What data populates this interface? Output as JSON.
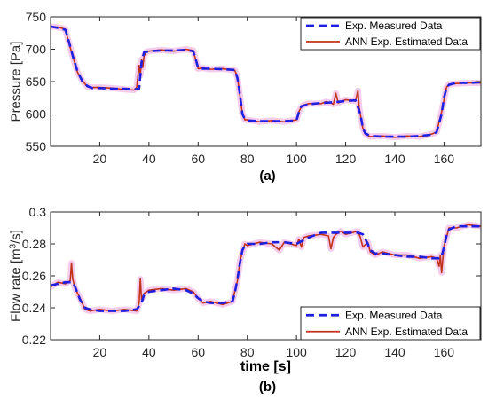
{
  "chart_data": [
    {
      "type": "line",
      "caption": "(a)",
      "xlabel": "",
      "ylabel": "Pressure [Pa]",
      "xlim": [
        0,
        175
      ],
      "ylim": [
        550,
        750
      ],
      "xticks": [
        20,
        40,
        60,
        80,
        100,
        120,
        140,
        160
      ],
      "yticks": [
        550,
        600,
        650,
        700,
        750
      ],
      "legend_position": "top-right",
      "series": [
        {
          "name": "Exp. Measured Data",
          "color": "#1f1fe0",
          "style": "dashed",
          "x": [
            0,
            3,
            6,
            7,
            9,
            11,
            13,
            15,
            17,
            20,
            25,
            30,
            34,
            36,
            37,
            38,
            40,
            45,
            50,
            55,
            58,
            59,
            60,
            62,
            65,
            70,
            75,
            76,
            77,
            78,
            79,
            80,
            85,
            90,
            95,
            100,
            101,
            102,
            103,
            105,
            110,
            115,
            120,
            124,
            126,
            127,
            128,
            130,
            135,
            140,
            145,
            150,
            155,
            157,
            159,
            160,
            161,
            162,
            165,
            170,
            175
          ],
          "y": [
            735,
            733,
            730,
            718,
            690,
            665,
            650,
            643,
            640,
            640,
            639,
            639,
            638,
            639,
            680,
            695,
            697,
            698,
            698,
            699,
            697,
            685,
            671,
            670,
            670,
            669,
            668,
            655,
            630,
            600,
            592,
            590,
            589,
            589,
            589,
            590,
            603,
            612,
            613,
            615,
            617,
            618,
            620,
            621,
            600,
            578,
            570,
            566,
            565,
            565,
            565,
            566,
            568,
            572,
            600,
            625,
            640,
            645,
            648,
            648,
            649
          ]
        },
        {
          "name": "ANN Exp. Estimated Data",
          "color": "#c0321a",
          "style": "solid",
          "x": [
            0,
            3,
            6,
            7,
            9,
            11,
            13,
            15,
            17,
            20,
            25,
            30,
            34,
            35,
            36,
            36.5,
            37,
            37.5,
            38,
            39,
            40,
            45,
            50,
            55,
            58,
            59,
            60,
            62,
            65,
            70,
            75,
            76,
            77,
            78,
            79,
            80,
            85,
            90,
            95,
            100,
            101,
            102,
            103,
            105,
            110,
            112,
            114,
            115,
            116,
            117,
            118,
            120,
            124,
            125,
            125.5,
            126,
            127,
            128,
            130,
            135,
            140,
            145,
            150,
            155,
            157,
            158,
            159,
            160,
            161,
            162,
            165,
            170,
            175
          ],
          "y": [
            735,
            734,
            731,
            716,
            689,
            664,
            651,
            642,
            641,
            641,
            640,
            638,
            637,
            641,
            675,
            660,
            684,
            672,
            690,
            696,
            697,
            699,
            697,
            700,
            698,
            684,
            670,
            671,
            669,
            670,
            667,
            656,
            628,
            601,
            591,
            591,
            588,
            590,
            588,
            591,
            604,
            611,
            614,
            616,
            616,
            619,
            617,
            615,
            632,
            617,
            619,
            622,
            620,
            636,
            610,
            599,
            578,
            569,
            565,
            566,
            564,
            566,
            565,
            569,
            572,
            588,
            603,
            622,
            641,
            646,
            647,
            648,
            648
          ]
        }
      ]
    },
    {
      "type": "line",
      "caption": "(b)",
      "xlabel": "time [s]",
      "ylabel": "Flow rate [m³/s]",
      "ylabel_parts": {
        "pre": "Flow rate [m",
        "sup": "3",
        "post": "/s]"
      },
      "xlim": [
        0,
        175
      ],
      "ylim": [
        0.22,
        0.3
      ],
      "xticks": [
        20,
        40,
        60,
        80,
        100,
        120,
        140,
        160
      ],
      "yticks": [
        0.22,
        0.24,
        0.26,
        0.28,
        0.3
      ],
      "ytick_labels": [
        "0.22",
        "0.24",
        "0.26",
        "0.28",
        "0.3"
      ],
      "legend_position": "bottom-right",
      "series": [
        {
          "name": "Exp. Measured Data",
          "color": "#1f1fe0",
          "style": "dashed",
          "x": [
            0,
            3,
            6,
            9,
            10,
            12,
            14,
            16,
            20,
            25,
            30,
            35,
            37,
            38,
            40,
            45,
            50,
            55,
            58,
            60,
            62,
            65,
            70,
            74,
            75,
            76,
            77,
            78,
            79,
            80,
            85,
            90,
            95,
            100,
            105,
            110,
            115,
            120,
            125,
            127,
            129,
            130,
            132,
            135,
            140,
            145,
            150,
            155,
            158,
            159,
            160,
            161,
            162,
            165,
            170,
            175
          ],
          "y": [
            0.254,
            0.255,
            0.256,
            0.256,
            0.253,
            0.245,
            0.24,
            0.239,
            0.238,
            0.238,
            0.238,
            0.239,
            0.243,
            0.248,
            0.25,
            0.251,
            0.252,
            0.251,
            0.249,
            0.246,
            0.244,
            0.243,
            0.243,
            0.244,
            0.25,
            0.258,
            0.268,
            0.276,
            0.279,
            0.28,
            0.28,
            0.281,
            0.281,
            0.28,
            0.284,
            0.287,
            0.287,
            0.287,
            0.287,
            0.286,
            0.28,
            0.276,
            0.274,
            0.274,
            0.273,
            0.272,
            0.272,
            0.271,
            0.271,
            0.272,
            0.278,
            0.285,
            0.289,
            0.291,
            0.291,
            0.291
          ]
        },
        {
          "name": "ANN Exp. Estimated Data",
          "color": "#c0321a",
          "style": "solid",
          "x": [
            0,
            3,
            6,
            8,
            8.5,
            9,
            10,
            12,
            14,
            16,
            20,
            25,
            30,
            35,
            36,
            36.5,
            37,
            38,
            40,
            45,
            50,
            55,
            58,
            60,
            62,
            65,
            70,
            74,
            75,
            76,
            77,
            78,
            79,
            80,
            85,
            90,
            93,
            95,
            100,
            101,
            102,
            103,
            105,
            110,
            113,
            114,
            115,
            116,
            118,
            120,
            125,
            126,
            127,
            129,
            130,
            132,
            135,
            140,
            145,
            150,
            155,
            157,
            158,
            158.5,
            159,
            160,
            161,
            162,
            165,
            170,
            175
          ],
          "y": [
            0.253,
            0.256,
            0.255,
            0.257,
            0.268,
            0.258,
            0.252,
            0.246,
            0.239,
            0.238,
            0.239,
            0.238,
            0.239,
            0.238,
            0.243,
            0.258,
            0.245,
            0.249,
            0.251,
            0.252,
            0.251,
            0.252,
            0.25,
            0.246,
            0.243,
            0.244,
            0.242,
            0.244,
            0.251,
            0.257,
            0.269,
            0.275,
            0.28,
            0.279,
            0.281,
            0.28,
            0.276,
            0.281,
            0.279,
            0.283,
            0.278,
            0.284,
            0.285,
            0.286,
            0.285,
            0.277,
            0.284,
            0.286,
            0.288,
            0.286,
            0.288,
            0.284,
            0.278,
            0.281,
            0.275,
            0.273,
            0.275,
            0.273,
            0.273,
            0.271,
            0.272,
            0.271,
            0.266,
            0.273,
            0.262,
            0.279,
            0.284,
            0.29,
            0.29,
            0.292,
            0.291
          ]
        }
      ]
    }
  ]
}
